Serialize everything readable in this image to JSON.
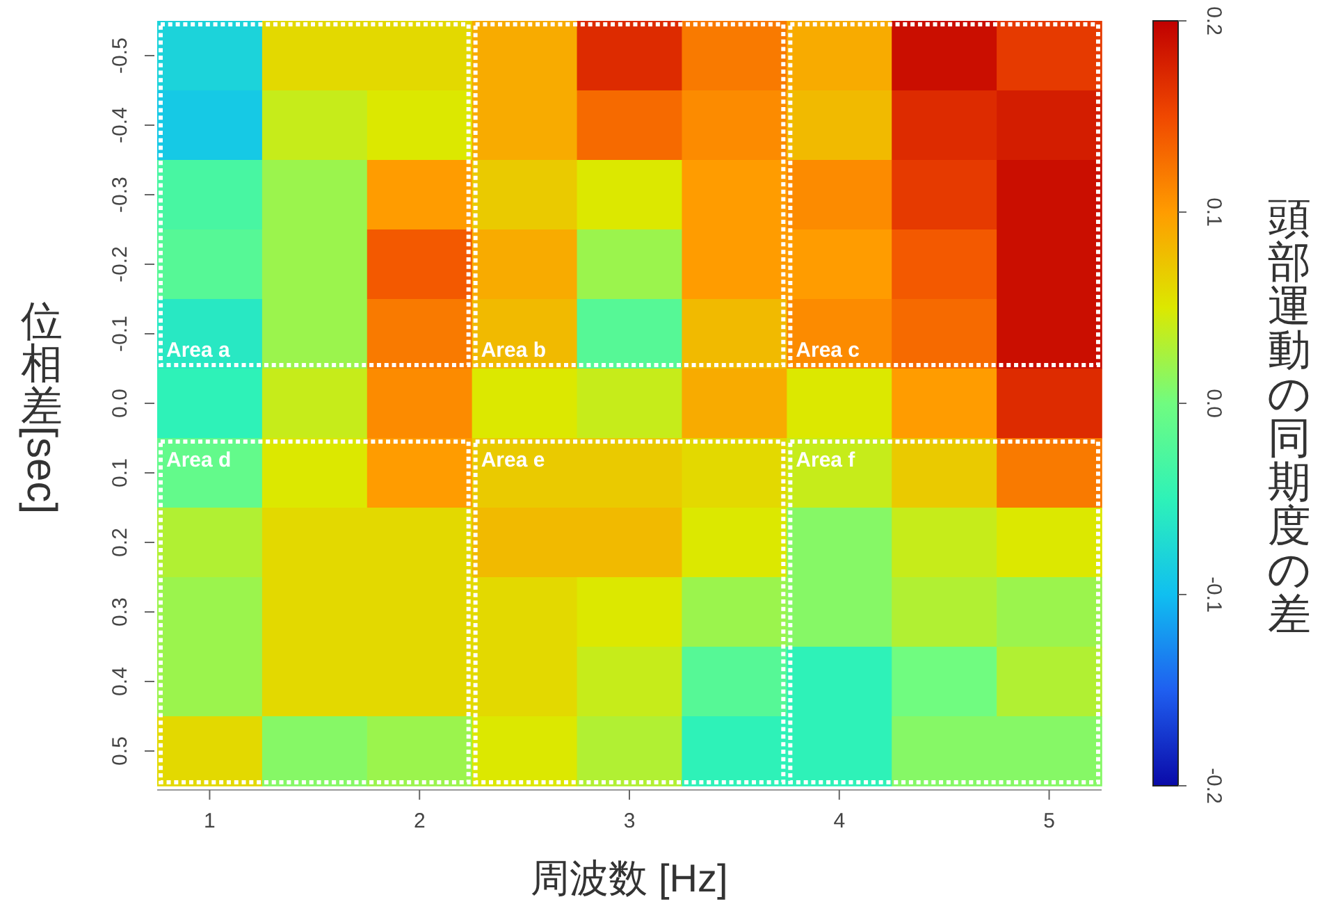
{
  "chart_data": {
    "type": "heatmap",
    "xlabel": "周波数 [Hz]",
    "ylabel": "位相差 [sec]",
    "clabel": "頭部運動の同期度の差",
    "x": [
      1,
      1.5,
      2,
      2.5,
      3,
      3.5,
      4,
      4.5,
      5
    ],
    "xlim": [
      0.75,
      5.25
    ],
    "xticks": [
      1,
      2,
      3,
      4,
      5
    ],
    "y_categories": [
      "-0.5",
      "-0.4",
      "-0.3",
      "-0.2",
      "-0.1",
      "0.0",
      "0.1",
      "0.2",
      "0.3",
      "0.4",
      "0.5"
    ],
    "cells": [
      [
        -0.08,
        0.06,
        0.06,
        0.09,
        0.17,
        0.12,
        0.09,
        0.19,
        0.16
      ],
      [
        -0.09,
        0.04,
        0.05,
        0.09,
        0.13,
        0.11,
        0.08,
        0.17,
        0.18
      ],
      [
        -0.03,
        0.02,
        0.1,
        0.07,
        0.05,
        0.1,
        0.11,
        0.16,
        0.19
      ],
      [
        -0.02,
        0.02,
        0.14,
        0.09,
        0.02,
        0.1,
        0.1,
        0.14,
        0.19
      ],
      [
        -0.06,
        0.02,
        0.12,
        0.08,
        -0.02,
        0.08,
        0.11,
        0.13,
        0.19
      ],
      [
        -0.05,
        0.04,
        0.11,
        0.05,
        0.04,
        0.09,
        0.05,
        0.1,
        0.17
      ],
      [
        -0.01,
        0.05,
        0.1,
        0.07,
        0.07,
        0.06,
        0.04,
        0.07,
        0.12
      ],
      [
        0.03,
        0.06,
        0.06,
        0.08,
        0.08,
        0.05,
        0.01,
        0.04,
        0.05
      ],
      [
        0.02,
        0.06,
        0.06,
        0.06,
        0.05,
        0.02,
        0.01,
        0.03,
        0.02
      ],
      [
        0.02,
        0.06,
        0.06,
        0.06,
        0.04,
        -0.02,
        -0.05,
        0.0,
        0.03
      ],
      [
        0.06,
        0.01,
        0.02,
        0.05,
        0.03,
        -0.05,
        -0.05,
        0.01,
        0.01
      ]
    ],
    "clim": [
      -0.2,
      0.2
    ],
    "cticks": [
      -0.2,
      -0.1,
      {
        "value": 0,
        "label": "0.0"
      },
      0.1,
      0.2
    ],
    "annotations": [
      "Area a",
      "Area b",
      "Area c",
      "Area d",
      "Area e",
      "Area f"
    ]
  }
}
